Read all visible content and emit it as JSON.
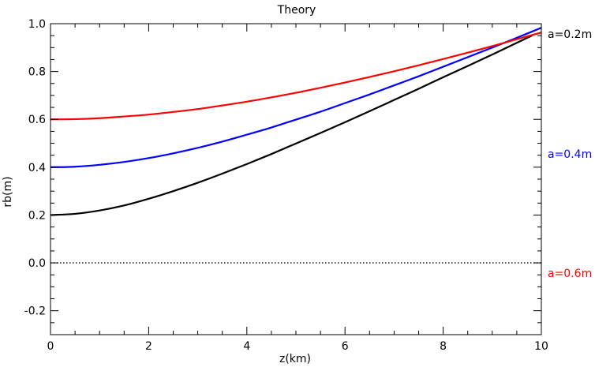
{
  "chart_data": {
    "type": "line",
    "title": "Theory",
    "xlabel": "z(km)",
    "ylabel": "rb(m)",
    "xlim": [
      0,
      10
    ],
    "ylim": [
      -0.3,
      1.0
    ],
    "xticks": [
      0,
      2,
      4,
      6,
      8,
      10
    ],
    "xtick_labels": [
      "0",
      "2",
      "4",
      "6",
      "8",
      "10"
    ],
    "yticks": [
      -0.2,
      0.0,
      0.2,
      0.4,
      0.6,
      0.8,
      1.0
    ],
    "ytick_labels": [
      "-0.2",
      "0.0",
      "0.2",
      "0.4",
      "0.6",
      "0.8",
      "1.0"
    ],
    "grid": false,
    "legend_position": "right",
    "reference_line": {
      "y": 0.0,
      "style": "dotted",
      "color": "#000000"
    },
    "series": [
      {
        "name": "a=0.2m",
        "color": "#000000",
        "x": [
          0,
          0.5,
          1,
          1.5,
          2,
          2.5,
          3,
          3.5,
          4,
          4.5,
          5,
          5.5,
          6,
          6.5,
          7,
          7.5,
          8,
          8.5,
          9,
          9.5
        ],
        "y": [
          0.2,
          0.205,
          0.219,
          0.24,
          0.268,
          0.3,
          0.335,
          0.373,
          0.413,
          0.455,
          0.499,
          0.543,
          0.588,
          0.634,
          0.681,
          0.728,
          0.776,
          0.823,
          0.871,
          0.92
        ]
      },
      {
        "name": "a=0.4m",
        "color": "#0000ff",
        "x": [
          0,
          0.5,
          1,
          1.5,
          2,
          2.5,
          3,
          3.5,
          4,
          4.5,
          5,
          5.5,
          6,
          6.5,
          7,
          7.5,
          8,
          8.5,
          9,
          9.5,
          10
        ],
        "y": [
          0.4,
          0.402,
          0.41,
          0.422,
          0.438,
          0.458,
          0.481,
          0.507,
          0.536,
          0.566,
          0.599,
          0.632,
          0.668,
          0.704,
          0.742,
          0.78,
          0.82,
          0.86,
          0.9,
          0.941,
          0.983
        ]
      },
      {
        "name": "a=0.6m",
        "color": "#ff0000",
        "x": [
          0,
          0.5,
          1,
          1.5,
          2,
          2.5,
          3,
          3.5,
          4,
          4.5,
          5,
          5.5,
          6,
          6.5,
          7,
          7.5,
          8,
          8.5,
          9,
          9.5,
          10
        ],
        "y": [
          0.6,
          0.601,
          0.605,
          0.612,
          0.62,
          0.631,
          0.643,
          0.658,
          0.674,
          0.692,
          0.711,
          0.732,
          0.754,
          0.777,
          0.801,
          0.826,
          0.852,
          0.879,
          0.906,
          0.935,
          0.963
        ]
      }
    ]
  }
}
